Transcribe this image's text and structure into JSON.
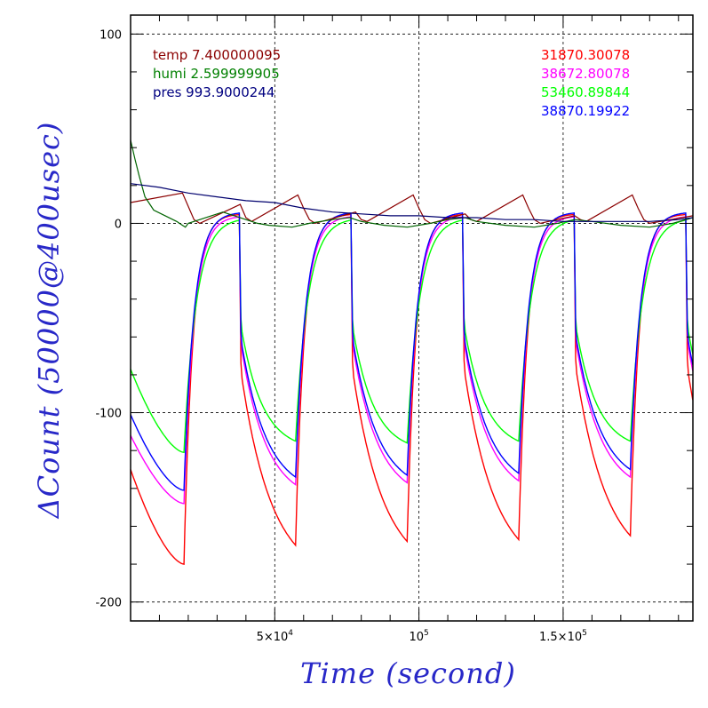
{
  "chart_data": {
    "type": "line",
    "xlabel": "Time (second)",
    "ylabel": "ΔCount (50000@400usec)",
    "xlim": [
      0,
      195000
    ],
    "ylim": [
      -210,
      110
    ],
    "grid": true,
    "x_ticks": [
      {
        "value": 50000,
        "label": "5×10",
        "exp": "4"
      },
      {
        "value": 100000,
        "label": "10",
        "exp": "5"
      },
      {
        "value": 150000,
        "label": "1.5×10",
        "exp": "5"
      }
    ],
    "y_ticks": [
      {
        "value": 100,
        "label": "100"
      },
      {
        "value": 0,
        "label": "0"
      },
      {
        "value": -100,
        "label": "-100"
      },
      {
        "value": -200,
        "label": "-200"
      }
    ],
    "legend_left": [
      {
        "label": "temp 7.400000095",
        "color": "#8b0000"
      },
      {
        "label": "humi 2.599999905",
        "color": "#008000"
      },
      {
        "label": "pres 993.9000244",
        "color": "#000080"
      }
    ],
    "legend_right": [
      {
        "label": "31870.30078",
        "color": "#ff0000"
      },
      {
        "label": "38672.80078",
        "color": "#ff00ff"
      },
      {
        "label": "53460.89844",
        "color": "#00ff00"
      },
      {
        "label": "38870.19922",
        "color": "#0000ff"
      }
    ],
    "axis_title_color": "#2828c8",
    "series": [
      {
        "name": "31870.30078",
        "color": "#ff0000",
        "cycle_start": 18500,
        "cycle_length": 38700,
        "period": 19350,
        "rise_start": -130,
        "rise_end": -180,
        "peak": 5,
        "decay_minima": [
          -170,
          -168,
          -167,
          -165
        ],
        "rise_tau": 0.16,
        "decay_tau": 0.55
      },
      {
        "name": "38672.80078",
        "color": "#ff00ff",
        "cycle_start": 18500,
        "cycle_length": 38700,
        "period": 19350,
        "rise_start": -112,
        "rise_end": -148,
        "peak": 4,
        "decay_minima": [
          -138,
          -137,
          -136,
          -134
        ],
        "rise_tau": 0.18,
        "decay_tau": 0.45
      },
      {
        "name": "53460.89844",
        "color": "#00ff00",
        "cycle_start": 18500,
        "cycle_length": 38700,
        "period": 19350,
        "rise_start": -77,
        "rise_end": -121,
        "peak": 3,
        "decay_minima": [
          -115,
          -116,
          -115,
          -115
        ],
        "rise_tau": 0.22,
        "decay_tau": 0.38
      },
      {
        "name": "38870.19922",
        "color": "#0000ff",
        "cycle_start": 18500,
        "cycle_length": 38700,
        "period": 19350,
        "rise_start": -101,
        "rise_end": -141,
        "peak": 6,
        "decay_minima": [
          -134,
          -133,
          -132,
          -130
        ],
        "rise_tau": 0.18,
        "decay_tau": 0.45
      }
    ],
    "env_series": [
      {
        "name": "temp",
        "color": "#8b0000",
        "points": [
          [
            0,
            11
          ],
          [
            18000,
            16
          ],
          [
            20000,
            9
          ],
          [
            22000,
            2
          ],
          [
            24000,
            0
          ],
          [
            38000,
            10
          ],
          [
            40000,
            3
          ],
          [
            42000,
            1
          ],
          [
            58000,
            15
          ],
          [
            60000,
            8
          ],
          [
            62000,
            2
          ],
          [
            64000,
            0
          ],
          [
            78000,
            6
          ],
          [
            80000,
            2
          ],
          [
            82000,
            1
          ],
          [
            98000,
            15
          ],
          [
            100000,
            8
          ],
          [
            102000,
            2
          ],
          [
            104000,
            0
          ],
          [
            116000,
            5
          ],
          [
            118000,
            2
          ],
          [
            120000,
            1
          ],
          [
            136000,
            15
          ],
          [
            138000,
            8
          ],
          [
            140000,
            2
          ],
          [
            142000,
            0
          ],
          [
            154000,
            4
          ],
          [
            156000,
            2
          ],
          [
            158000,
            1
          ],
          [
            174000,
            15
          ],
          [
            176000,
            8
          ],
          [
            178000,
            2
          ],
          [
            180000,
            0
          ],
          [
            195000,
            4
          ]
        ]
      },
      {
        "name": "humi",
        "color": "#006400",
        "points": [
          [
            0,
            44
          ],
          [
            1500,
            34
          ],
          [
            3000,
            25
          ],
          [
            5000,
            14
          ],
          [
            8000,
            7
          ],
          [
            12000,
            4
          ],
          [
            16000,
            1
          ],
          [
            18000,
            -1
          ],
          [
            19000,
            -2
          ],
          [
            20000,
            0
          ],
          [
            24000,
            2
          ],
          [
            28000,
            4
          ],
          [
            32000,
            6
          ],
          [
            36000,
            4
          ],
          [
            40000,
            2
          ],
          [
            44000,
            0
          ],
          [
            48000,
            -1
          ],
          [
            56000,
            -2
          ],
          [
            62000,
            0
          ],
          [
            70000,
            2
          ],
          [
            76000,
            3
          ],
          [
            80000,
            1
          ],
          [
            88000,
            -1
          ],
          [
            96000,
            -2
          ],
          [
            104000,
            0
          ],
          [
            110000,
            2
          ],
          [
            116000,
            3
          ],
          [
            120000,
            1
          ],
          [
            130000,
            -1
          ],
          [
            140000,
            -2
          ],
          [
            148000,
            0
          ],
          [
            154000,
            2
          ],
          [
            160000,
            1
          ],
          [
            170000,
            -1
          ],
          [
            180000,
            -2
          ],
          [
            188000,
            0
          ],
          [
            195000,
            3
          ]
        ]
      },
      {
        "name": "pres",
        "color": "#00006e",
        "points": [
          [
            0,
            21
          ],
          [
            10000,
            19
          ],
          [
            20000,
            16
          ],
          [
            30000,
            14
          ],
          [
            40000,
            12
          ],
          [
            50000,
            11
          ],
          [
            60000,
            8
          ],
          [
            70000,
            6
          ],
          [
            80000,
            5
          ],
          [
            90000,
            4
          ],
          [
            100000,
            4
          ],
          [
            110000,
            3
          ],
          [
            120000,
            3
          ],
          [
            130000,
            2
          ],
          [
            140000,
            2
          ],
          [
            150000,
            1
          ],
          [
            160000,
            1
          ],
          [
            170000,
            1
          ],
          [
            180000,
            1
          ],
          [
            190000,
            2
          ],
          [
            195000,
            3
          ]
        ]
      }
    ]
  }
}
